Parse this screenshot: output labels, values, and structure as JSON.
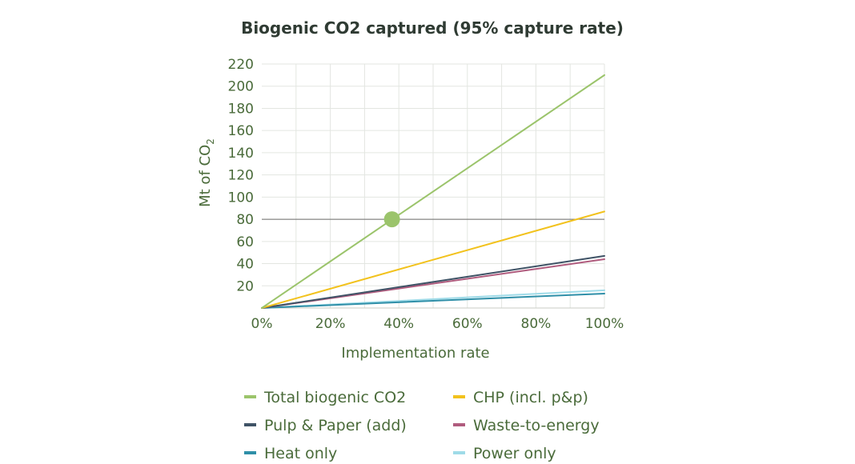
{
  "chart_data": {
    "type": "line",
    "title": "Biogenic CO2 captured (95% capture rate)",
    "xlabel": "Implementation rate",
    "ylabel_prefix": "Mt of CO",
    "ylabel_subscript": "2",
    "x": [
      0,
      100
    ],
    "x_tick_labels": [
      "0%",
      "20%",
      "40%",
      "60%",
      "80%",
      "100%"
    ],
    "x_tick_values": [
      0,
      20,
      40,
      60,
      80,
      100
    ],
    "xlim": [
      0,
      100
    ],
    "y_tick_labels": [
      "20",
      "40",
      "60",
      "80",
      "100",
      "120",
      "140",
      "160",
      "180",
      "200",
      "220"
    ],
    "y_tick_values": [
      20,
      40,
      60,
      80,
      100,
      120,
      140,
      160,
      180,
      200,
      220
    ],
    "ylim": [
      0,
      220
    ],
    "grid": true,
    "reference_line": {
      "y": 80
    },
    "highlight_point": {
      "x": 38,
      "y": 80,
      "series": "Total biogenic CO2"
    },
    "legend_position": "bottom",
    "series": [
      {
        "name": "Total biogenic CO2",
        "color": "#9bc46b",
        "values": [
          0,
          210
        ]
      },
      {
        "name": "CHP (incl. p&p)",
        "color": "#f2c21d",
        "values": [
          0,
          87
        ]
      },
      {
        "name": "Pulp & Paper (add)",
        "color": "#3f5366",
        "values": [
          0,
          47
        ]
      },
      {
        "name": "Waste-to-energy",
        "color": "#b05c7e",
        "values": [
          0,
          44
        ]
      },
      {
        "name": "Heat only",
        "color": "#2f8fa8",
        "values": [
          0,
          13
        ]
      },
      {
        "name": "Power only",
        "color": "#9fdbe8",
        "values": [
          0,
          16
        ]
      }
    ]
  }
}
